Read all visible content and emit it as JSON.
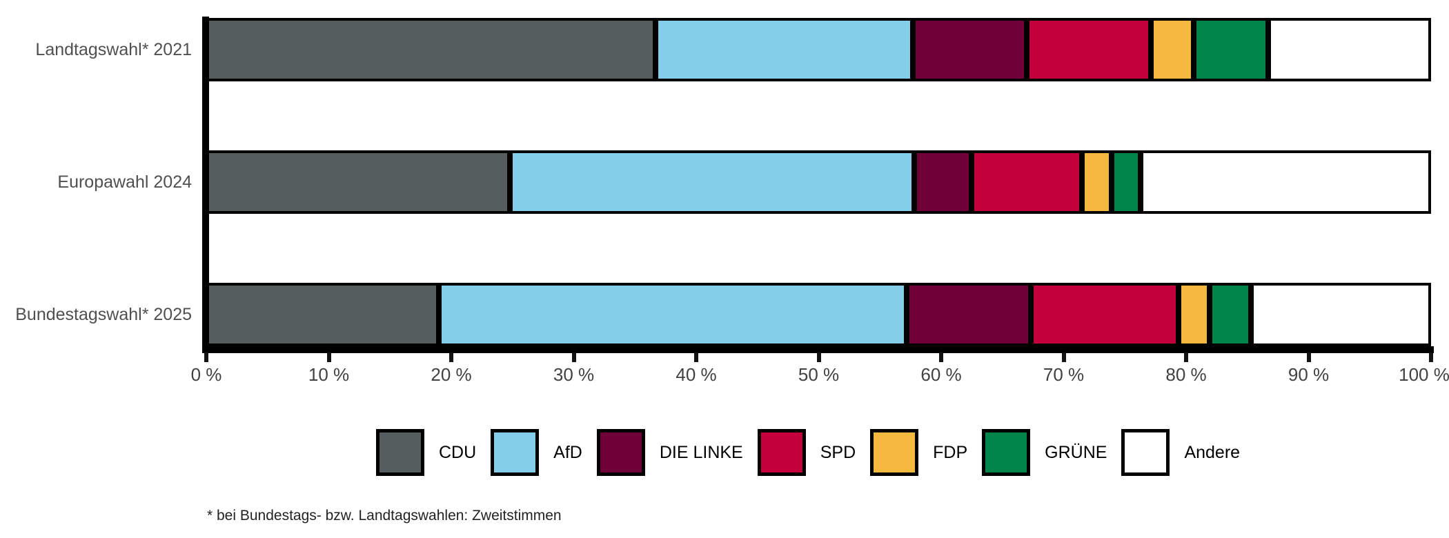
{
  "chart_data": {
    "type": "bar",
    "variant": "horizontal-stacked",
    "title": "",
    "xlabel": "",
    "ylabel": "",
    "xlim": [
      0,
      100
    ],
    "grid": false,
    "legend_position": "bottom",
    "categories": [
      "Landtagswahl* 2021",
      "Europawahl 2024",
      "Bundestagswahl* 2025"
    ],
    "series": [
      {
        "name": "CDU",
        "color": "#565D5F",
        "values": [
          36.7,
          24.8,
          19.0
        ]
      },
      {
        "name": "AfD",
        "color": "#85CEEA",
        "values": [
          21.0,
          33.0,
          38.2
        ]
      },
      {
        "name": "DIE LINKE",
        "color": "#6F0038",
        "values": [
          9.3,
          4.7,
          10.1
        ]
      },
      {
        "name": "SPD",
        "color": "#C3003C",
        "values": [
          10.1,
          9.0,
          12.1
        ]
      },
      {
        "name": "FDP",
        "color": "#F6B93F",
        "values": [
          3.5,
          2.4,
          2.5
        ]
      },
      {
        "name": "GRÜNE",
        "color": "#00854A",
        "values": [
          6.1,
          2.4,
          3.4
        ]
      },
      {
        "name": "Andere",
        "color": "#FFFFFF",
        "values": [
          13.3,
          23.7,
          14.7
        ]
      }
    ],
    "x_ticks": [
      {
        "v": 0,
        "label": "0 %"
      },
      {
        "v": 10,
        "label": "10 %"
      },
      {
        "v": 20,
        "label": "20 %"
      },
      {
        "v": 30,
        "label": "30 %"
      },
      {
        "v": 40,
        "label": "40 %"
      },
      {
        "v": 50,
        "label": "50 %"
      },
      {
        "v": 60,
        "label": "60 %"
      },
      {
        "v": 70,
        "label": "70 %"
      },
      {
        "v": 80,
        "label": "80 %"
      },
      {
        "v": 90,
        "label": "90 %"
      },
      {
        "v": 100,
        "label": "100 %"
      }
    ],
    "footnote": "* bei Bundestags- bzw. Landtagswahlen: Zweitstimmen"
  }
}
